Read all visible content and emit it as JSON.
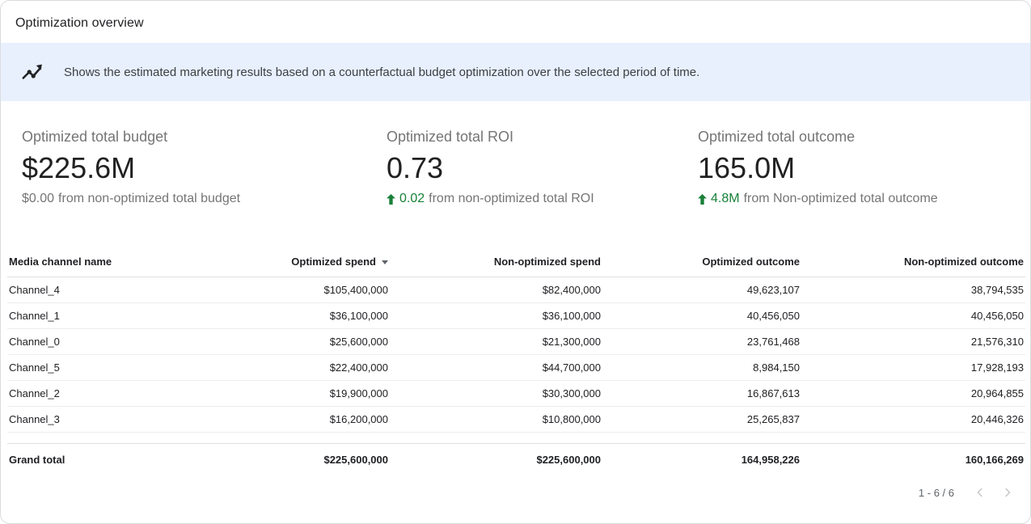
{
  "panel": {
    "title": "Optimization overview"
  },
  "banner": {
    "icon": "trending-up-icon",
    "text": "Shows the estimated marketing results based on a counterfactual budget optimization over the selected period of time."
  },
  "kpis": [
    {
      "label": "Optimized total budget",
      "value": "$225.6M",
      "delta_value": "$0.00",
      "delta_suffix": "from non-optimized total budget",
      "delta_positive": false
    },
    {
      "label": "Optimized total ROI",
      "value": "0.73",
      "delta_value": "0.02",
      "delta_suffix": "from non-optimized total ROI",
      "delta_positive": true
    },
    {
      "label": "Optimized total outcome",
      "value": "165.0M",
      "delta_value": "4.8M",
      "delta_suffix": "from Non-optimized total outcome",
      "delta_positive": true
    }
  ],
  "table": {
    "columns": [
      "Media channel name",
      "Optimized spend",
      "Non-optimized spend",
      "Optimized outcome",
      "Non-optimized outcome"
    ],
    "sort": {
      "column": "Optimized spend",
      "direction": "desc"
    },
    "rows": [
      [
        "Channel_4",
        "$105,400,000",
        "$82,400,000",
        "49,623,107",
        "38,794,535"
      ],
      [
        "Channel_1",
        "$36,100,000",
        "$36,100,000",
        "40,456,050",
        "40,456,050"
      ],
      [
        "Channel_0",
        "$25,600,000",
        "$21,300,000",
        "23,761,468",
        "21,576,310"
      ],
      [
        "Channel_5",
        "$22,400,000",
        "$44,700,000",
        "8,984,150",
        "17,928,193"
      ],
      [
        "Channel_2",
        "$19,900,000",
        "$30,300,000",
        "16,867,613",
        "20,964,855"
      ],
      [
        "Channel_3",
        "$16,200,000",
        "$10,800,000",
        "25,265,837",
        "20,446,326"
      ]
    ],
    "grand_total": [
      "Grand total",
      "$225,600,000",
      "$225,600,000",
      "164,958,226",
      "160,166,269"
    ]
  },
  "pagination": {
    "label": "1 - 6 / 6",
    "prev_enabled": false,
    "next_enabled": false
  },
  "colors": {
    "positive": "#188038",
    "banner_bg": "#e8f0fe"
  }
}
